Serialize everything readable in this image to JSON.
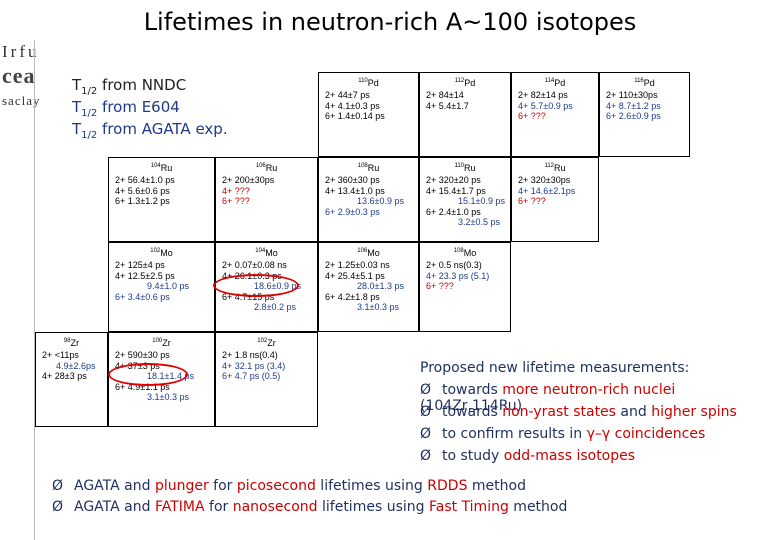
{
  "title": "Lifetimes in neutron-rich A~100 isotopes",
  "logo": {
    "line1": "Irfu",
    "line2": "cea",
    "line3": "saclay"
  },
  "legend": [
    {
      "prefix": "T",
      "sub": "1/2",
      "text": " from NNDC"
    },
    {
      "prefix": "T",
      "sub": "1/2",
      "text": " from E604"
    },
    {
      "prefix": "T",
      "sub": "1/2",
      "text": " from AGATA exp."
    }
  ],
  "cells": [
    {
      "id": "pd110",
      "A": "110",
      "el": "Pd",
      "rows": [
        {
          "t": "2+ 44±7 ps",
          "c": "black"
        },
        {
          "t": "4+ 4.1±0.3 ps",
          "c": "black"
        },
        {
          "t": "6+ 1.4±0.14 ps",
          "c": "black"
        }
      ]
    },
    {
      "id": "pd112",
      "A": "112",
      "el": "Pd",
      "rows": [
        {
          "t": "2+ 84±14",
          "c": "black"
        },
        {
          "t": "4+ 5.4±1.7",
          "c": "black"
        }
      ]
    },
    {
      "id": "pd114",
      "A": "114",
      "el": "Pd",
      "rows": [
        {
          "t": "2+ 82±14 ps",
          "c": "black"
        },
        {
          "t": "4+ 5.7±0.9 ps",
          "c": "blue"
        },
        {
          "t": "6+ ???",
          "c": "red"
        }
      ]
    },
    {
      "id": "pd116",
      "A": "116",
      "el": "Pd",
      "rows": [
        {
          "t": "2+ 110±30ps",
          "c": "black"
        },
        {
          "t": "4+ 8.7±1.2 ps",
          "c": "blue"
        },
        {
          "t": "6+ 2.6±0.9 ps",
          "c": "blue"
        }
      ]
    },
    {
      "id": "ru104",
      "A": "104",
      "el": "Ru",
      "rows": [
        {
          "t": "2+ 56.4±1.0 ps",
          "c": "black"
        },
        {
          "t": "4+ 5.6±0.6 ps",
          "c": "black"
        },
        {
          "t": "6+ 1.3±1.2 ps",
          "c": "black"
        }
      ]
    },
    {
      "id": "ru106",
      "A": "106",
      "el": "Ru",
      "rows": [
        {
          "t": "2+ 200±30ps",
          "c": "black"
        },
        {
          "t": "4+ ???",
          "c": "red"
        },
        {
          "t": "6+ ???",
          "c": "red"
        }
      ]
    },
    {
      "id": "ru108",
      "A": "108",
      "el": "Ru",
      "rows": [
        {
          "t": "2+ 360±30 ps",
          "c": "black"
        },
        {
          "t": "4+ 13.4±1.0 ps",
          "c": "black"
        },
        {
          "t": "13.6±0.9 ps",
          "c": "blue",
          "ind": true
        },
        {
          "t": "6+ 2.9±0.3 ps",
          "c": "blue"
        }
      ]
    },
    {
      "id": "ru110",
      "A": "110",
      "el": "Ru",
      "rows": [
        {
          "t": "2+ 320±20 ps",
          "c": "black"
        },
        {
          "t": "4+ 15.4±1.7 ps",
          "c": "black"
        },
        {
          "t": "15.1±0.9 ps",
          "c": "blue",
          "ind": true
        },
        {
          "t": "6+ 2.4±1.0 ps",
          "c": "black"
        },
        {
          "t": "3.2±0.5 ps",
          "c": "blue",
          "ind": true
        }
      ]
    },
    {
      "id": "ru112",
      "A": "112",
      "el": "Ru",
      "rows": [
        {
          "t": "2+ 320±30ps",
          "c": "black"
        },
        {
          "t": "4+ 14.6±2.1ps",
          "c": "blue"
        },
        {
          "t": "6+ ???",
          "c": "red"
        }
      ]
    },
    {
      "id": "mo102",
      "A": "102",
      "el": "Mo",
      "rows": [
        {
          "t": "2+ 125±4 ps",
          "c": "black"
        },
        {
          "t": "4+ 12.5±2.5 ps",
          "c": "black"
        },
        {
          "t": "9.4±1.0 ps",
          "c": "blue",
          "ind": true
        },
        {
          "t": "6+ 3.4±0.6 ps",
          "c": "blue"
        }
      ]
    },
    {
      "id": "mo104",
      "A": "104",
      "el": "Mo",
      "rows": [
        {
          "t": "2+ 0.07±0.08 ns",
          "c": "black"
        },
        {
          "t": "4+ 26.1±0.3 ps",
          "c": "black"
        },
        {
          "t": "18.6±0.9 ps",
          "c": "blue",
          "ind": true
        },
        {
          "t": "6+ 4.7±15 ps",
          "c": "black"
        },
        {
          "t": "2.8±0.2 ps",
          "c": "blue",
          "ind": true
        }
      ]
    },
    {
      "id": "mo106",
      "A": "106",
      "el": "Mo",
      "rows": [
        {
          "t": "2+ 1.25±0.03 ns",
          "c": "black"
        },
        {
          "t": "4+ 25.4±5.1 ps",
          "c": "black"
        },
        {
          "t": "28.0±1.3 ps",
          "c": "blue",
          "ind": true
        },
        {
          "t": "6+ 4.2±1.8 ps",
          "c": "black"
        },
        {
          "t": "3.1±0.3 ps",
          "c": "blue",
          "ind": true
        }
      ]
    },
    {
      "id": "mo108",
      "A": "108",
      "el": "Mo",
      "rows": [
        {
          "t": "2+ 0.5 ns(0.3)",
          "c": "black"
        },
        {
          "t": "4+ 23.3 ps (5.1)",
          "c": "blue"
        },
        {
          "t": "6+ ???",
          "c": "red"
        }
      ]
    },
    {
      "id": "zr98",
      "A": "98",
      "el": "Zr",
      "rows": [
        {
          "t": "2+ <11ps",
          "c": "black"
        },
        {
          "t": "4.9±2.6ps",
          "c": "blue",
          "ind2": true
        },
        {
          "t": "4+ 28±3 ps",
          "c": "black"
        }
      ]
    },
    {
      "id": "zr100",
      "A": "100",
      "el": "Zr",
      "rows": [
        {
          "t": "2+ 590±30 ps",
          "c": "black"
        },
        {
          "t": "4+ 37±3 ps",
          "c": "black"
        },
        {
          "t": "18.1±1.4 ps",
          "c": "blue",
          "ind": true
        },
        {
          "t": "6+ 4.9±1.1 ps",
          "c": "black"
        },
        {
          "t": "3.1±0.3 ps",
          "c": "blue",
          "ind": true
        }
      ]
    },
    {
      "id": "zr102",
      "A": "102",
      "el": "Zr",
      "rows": [
        {
          "t": "2+ 1.8 ns(0.4)",
          "c": "black"
        },
        {
          "t": "4+ 32.1 ps (3.4)",
          "c": "blue"
        },
        {
          "t": "6+ 4.7 ps (0.5)",
          "c": "blue"
        }
      ]
    }
  ],
  "proposed": {
    "heading": "Proposed new lifetime measurements:",
    "bullets": [
      {
        "parts": [
          {
            "t": "towards ",
            "c": "n"
          },
          {
            "t": "more neutron-rich nuclei",
            "c": "r"
          },
          {
            "t": " (104Zr,114Ru)",
            "c": "n"
          }
        ]
      },
      {
        "parts": [
          {
            "t": "towards ",
            "c": "n"
          },
          {
            "t": "non-yrast states",
            "c": "r"
          },
          {
            "t": " and ",
            "c": "n"
          },
          {
            "t": "higher spins",
            "c": "r"
          }
        ]
      },
      {
        "parts": [
          {
            "t": "to confirm results in ",
            "c": "n"
          },
          {
            "t": "γ–γ coincidences",
            "c": "r"
          }
        ]
      },
      {
        "parts": [
          {
            "t": "to study ",
            "c": "n"
          },
          {
            "t": "odd-mass isotopes",
            "c": "r"
          }
        ]
      }
    ],
    "arrow": "Ø"
  },
  "bottom": [
    {
      "parts": [
        {
          "t": "AGATA and ",
          "c": "n"
        },
        {
          "t": "plunger",
          "c": "r"
        },
        {
          "t": " for ",
          "c": "n"
        },
        {
          "t": "picosecond",
          "c": "r"
        },
        {
          "t": " lifetimes using ",
          "c": "n"
        },
        {
          "t": "RDDS",
          "c": "r"
        },
        {
          "t": " method",
          "c": "n"
        }
      ]
    },
    {
      "parts": [
        {
          "t": "AGATA and ",
          "c": "n"
        },
        {
          "t": "FATIMA",
          "c": "r"
        },
        {
          "t": " for ",
          "c": "n"
        },
        {
          "t": "nanosecond",
          "c": "r"
        },
        {
          "t": " lifetimes using ",
          "c": "n"
        },
        {
          "t": "Fast Timing",
          "c": "r"
        },
        {
          "t": " method",
          "c": "n"
        }
      ]
    }
  ],
  "colors": {
    "black": "#000000",
    "red": "#cc0000",
    "blue": "#1f3a8a",
    "text": "#1f2f5f"
  }
}
